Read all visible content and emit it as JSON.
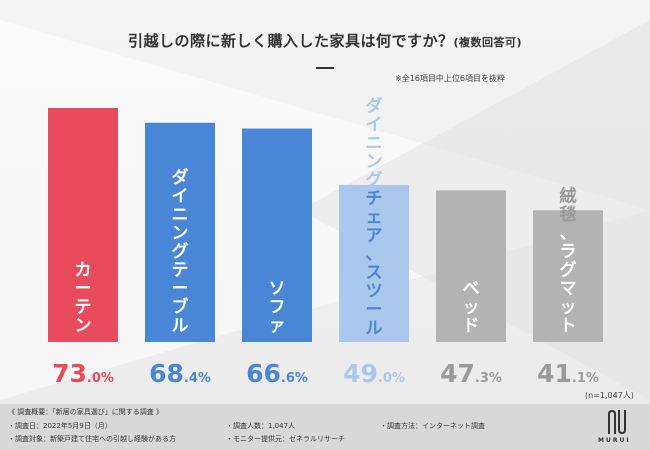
{
  "title": "引越しの際に新しく購入した家具は何ですか？",
  "title_sub": "(複数回答可)",
  "note": "※全16項目中上位6項目を抜粋",
  "n_note": "(n=1,047人)",
  "chart_data": {
    "type": "bar",
    "title": "引越しの際に新しく購入した家具は何ですか？(複数回答可)",
    "categories": [
      "カーテン",
      "ダイニングテーブル",
      "ソファ",
      "ダイニングチェア、スツール",
      "ベッド",
      "絨毯、ラグマット"
    ],
    "values": [
      73.0,
      68.4,
      66.6,
      49.0,
      47.3,
      41.1
    ],
    "value_labels": [
      {
        "int": "73",
        "dec": ".0%"
      },
      {
        "int": "68",
        "dec": ".4%"
      },
      {
        "int": "66",
        "dec": ".6%"
      },
      {
        "int": "49",
        "dec": ".0%"
      },
      {
        "int": "47",
        "dec": ".3%"
      },
      {
        "int": "41",
        "dec": ".1%"
      }
    ],
    "unit": "%",
    "ylim": [
      0,
      73
    ],
    "bar_colors": [
      "#e84c5c",
      "#4a86d6",
      "#4a86d6",
      "#a9c8ec",
      "#b3b3b3",
      "#b3b3b3"
    ],
    "label_colors": [
      "#e84c5c",
      "#4a86d6",
      "#4a86d6",
      "#a9c8ec",
      "#9a9a9a",
      "#9a9a9a"
    ],
    "in_bar_text_colors": [
      "#ffffff",
      "#ffffff",
      "#ffffff",
      "#4a86d6",
      "#ffffff",
      "#ffffff"
    ]
  },
  "footer": {
    "heading": "《 調査概要：「新居の家具選び」に関する調査 》",
    "date": "・調査日：2022年5月9日（月）",
    "target": "・調査対象：新築戸建て住宅への引越し経験がある方",
    "count": "・調査人数：1,047人",
    "provider": "・モニター提供元：ゼネラルリサーチ",
    "method": "・調査方法：インターネット調査"
  },
  "brand": "MURUI"
}
